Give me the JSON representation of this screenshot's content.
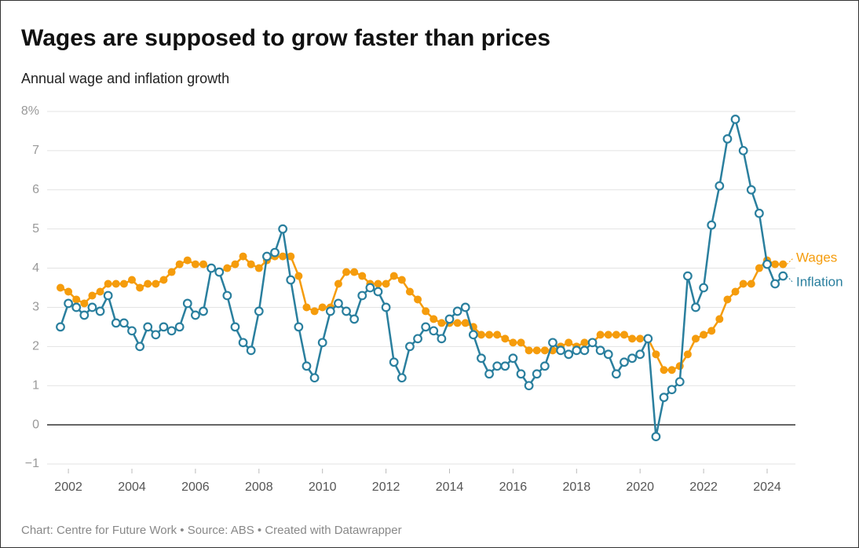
{
  "chart_data": {
    "type": "line",
    "title": "Wages are supposed to grow faster than prices",
    "subtitle": "Annual wage and inflation growth",
    "footer": "Chart: Centre for Future Work • Source: ABS • Created with Datawrapper",
    "x": [
      2001.75,
      2002,
      2002.25,
      2002.5,
      2002.75,
      2003,
      2003.25,
      2003.5,
      2003.75,
      2004,
      2004.25,
      2004.5,
      2004.75,
      2005,
      2005.25,
      2005.5,
      2005.75,
      2006,
      2006.25,
      2006.5,
      2006.75,
      2007,
      2007.25,
      2007.5,
      2007.75,
      2008,
      2008.25,
      2008.5,
      2008.75,
      2009,
      2009.25,
      2009.5,
      2009.75,
      2010,
      2010.25,
      2010.5,
      2010.75,
      2011,
      2011.25,
      2011.5,
      2011.75,
      2012,
      2012.25,
      2012.5,
      2012.75,
      2013,
      2013.25,
      2013.5,
      2013.75,
      2014,
      2014.25,
      2014.5,
      2014.75,
      2015,
      2015.25,
      2015.5,
      2015.75,
      2016,
      2016.25,
      2016.5,
      2016.75,
      2017,
      2017.25,
      2017.5,
      2017.75,
      2018,
      2018.25,
      2018.5,
      2018.75,
      2019,
      2019.25,
      2019.5,
      2019.75,
      2020,
      2020.25,
      2020.5,
      2020.75,
      2021,
      2021.25,
      2021.5,
      2021.75,
      2022,
      2022.25,
      2022.5,
      2022.75,
      2023,
      2023.25,
      2023.5,
      2023.75,
      2024,
      2024.25,
      2024.5
    ],
    "series": [
      {
        "name": "Wages",
        "color": "#f59c0c",
        "marker": "filled",
        "values": [
          3.5,
          3.4,
          3.2,
          3.1,
          3.3,
          3.4,
          3.6,
          3.6,
          3.6,
          3.7,
          3.5,
          3.6,
          3.6,
          3.7,
          3.9,
          4.1,
          4.2,
          4.1,
          4.1,
          4.0,
          3.9,
          4.0,
          4.1,
          4.3,
          4.1,
          4.0,
          4.2,
          4.3,
          4.3,
          4.3,
          3.8,
          3.0,
          2.9,
          3.0,
          3.0,
          3.6,
          3.9,
          3.9,
          3.8,
          3.6,
          3.6,
          3.6,
          3.8,
          3.7,
          3.4,
          3.2,
          2.9,
          2.7,
          2.6,
          2.6,
          2.6,
          2.6,
          2.5,
          2.3,
          2.3,
          2.3,
          2.2,
          2.1,
          2.1,
          1.9,
          1.9,
          1.9,
          1.9,
          2.0,
          2.1,
          2.0,
          2.1,
          2.1,
          2.3,
          2.3,
          2.3,
          2.3,
          2.2,
          2.2,
          2.2,
          1.8,
          1.4,
          1.4,
          1.5,
          1.8,
          2.2,
          2.3,
          2.4,
          2.7,
          3.2,
          3.4,
          3.6,
          3.6,
          4.0,
          4.2,
          4.1,
          4.1
        ]
      },
      {
        "name": "Inflation",
        "color": "#2a7f9e",
        "marker": "hollow",
        "values": [
          2.5,
          3.1,
          3.0,
          2.8,
          3.0,
          2.9,
          3.3,
          2.6,
          2.6,
          2.4,
          2.0,
          2.5,
          2.3,
          2.5,
          2.4,
          2.5,
          3.1,
          2.8,
          2.9,
          4.0,
          3.9,
          3.3,
          2.5,
          2.1,
          1.9,
          2.9,
          4.3,
          4.4,
          5.0,
          3.7,
          2.5,
          1.5,
          1.2,
          2.1,
          2.9,
          3.1,
          2.9,
          2.7,
          3.3,
          3.5,
          3.4,
          3.0,
          1.6,
          1.2,
          2.0,
          2.2,
          2.5,
          2.4,
          2.2,
          2.7,
          2.9,
          3.0,
          2.3,
          1.7,
          1.3,
          1.5,
          1.5,
          1.7,
          1.3,
          1.0,
          1.3,
          1.5,
          2.1,
          1.9,
          1.8,
          1.9,
          1.9,
          2.1,
          1.9,
          1.8,
          1.3,
          1.6,
          1.7,
          1.8,
          2.2,
          -0.3,
          0.7,
          0.9,
          1.1,
          3.8,
          3.0,
          3.5,
          5.1,
          6.1,
          7.3,
          7.8,
          7.0,
          6.0,
          5.4,
          4.1,
          3.6,
          3.8
        ]
      }
    ],
    "xlim": [
      2001.33,
      2024.89
    ],
    "xticks": [
      2002,
      2004,
      2006,
      2008,
      2010,
      2012,
      2014,
      2016,
      2018,
      2020,
      2022,
      2024
    ],
    "ylim": [
      -1.2,
      8.2
    ],
    "yticks": [
      {
        "value": -1,
        "label": "−1"
      },
      0,
      1,
      2,
      3,
      4,
      5,
      6,
      7,
      {
        "value": 8,
        "label": "8%"
      }
    ],
    "grid": true
  }
}
